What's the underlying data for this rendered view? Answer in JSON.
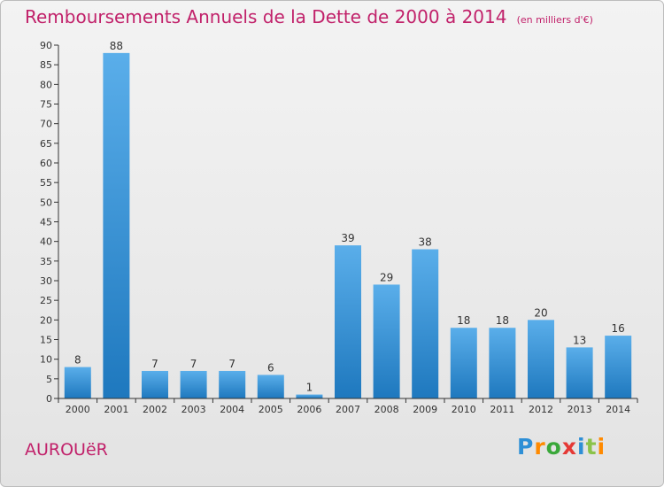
{
  "title": "Remboursements Annuels de la Dette de 2000 à 2014",
  "unit": "(en milliers d'€)",
  "town": "AUROUëR",
  "logo": {
    "text": "Proxiti",
    "letters": [
      "P",
      "r",
      "o",
      "x",
      "i",
      "t",
      "i"
    ]
  },
  "colors": {
    "title": "#c1216a",
    "bar_light": "#5aaeea",
    "bar_dark": "#1e78be",
    "logo_letters": [
      "#2e8fd6",
      "#ff8a00",
      "#3aa83a",
      "#e53935",
      "#2e8fd6",
      "#8bc34a",
      "#ff8a00"
    ]
  },
  "chart_data": {
    "type": "bar",
    "categories": [
      "2000",
      "2001",
      "2002",
      "2003",
      "2004",
      "2005",
      "2006",
      "2007",
      "2008",
      "2009",
      "2010",
      "2011",
      "2012",
      "2013",
      "2014"
    ],
    "values": [
      8,
      88,
      7,
      7,
      7,
      6,
      1,
      39,
      29,
      38,
      18,
      18,
      20,
      13,
      16
    ],
    "xlabel": "",
    "ylabel": "",
    "ylim": [
      0,
      90
    ],
    "yticks": [
      0,
      5,
      10,
      15,
      20,
      25,
      30,
      35,
      40,
      45,
      50,
      55,
      60,
      65,
      70,
      75,
      80,
      85,
      90
    ],
    "grid": false,
    "data_labels": true
  }
}
